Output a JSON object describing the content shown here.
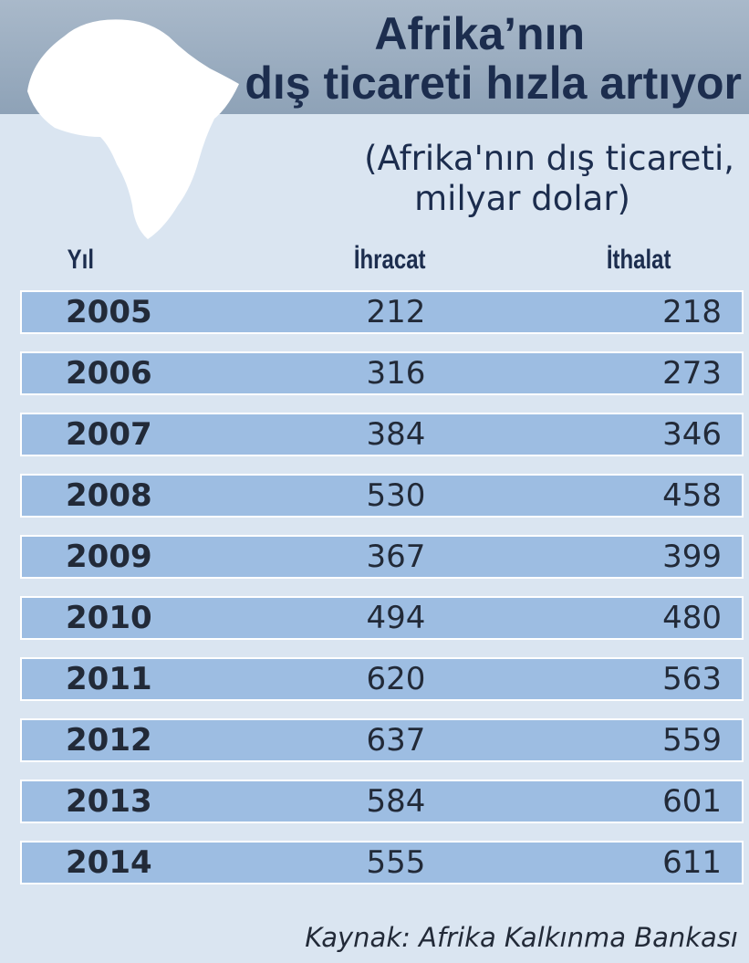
{
  "header": {
    "title": [
      "Afrika’nın",
      "dış ticareti hızla artıyor"
    ],
    "subtitle": [
      "(Afrika'nın dış ticareti,",
      "milyar dolar)"
    ]
  },
  "table": {
    "columns": [
      "Yıl",
      "İhracat",
      "İthalat"
    ],
    "rows": [
      [
        "2005",
        "212",
        "218"
      ],
      [
        "2006",
        "316",
        "273"
      ],
      [
        "2007",
        "384",
        "346"
      ],
      [
        "2008",
        "530",
        "458"
      ],
      [
        "2009",
        "367",
        "399"
      ],
      [
        "2010",
        "494",
        "480"
      ],
      [
        "2011",
        "620",
        "563"
      ],
      [
        "2012",
        "637",
        "559"
      ],
      [
        "2013",
        "584",
        "601"
      ],
      [
        "2014",
        "555",
        "611"
      ]
    ]
  },
  "footer": {
    "source": "Kaynak: Afrika Kalkınma Bankası"
  }
}
